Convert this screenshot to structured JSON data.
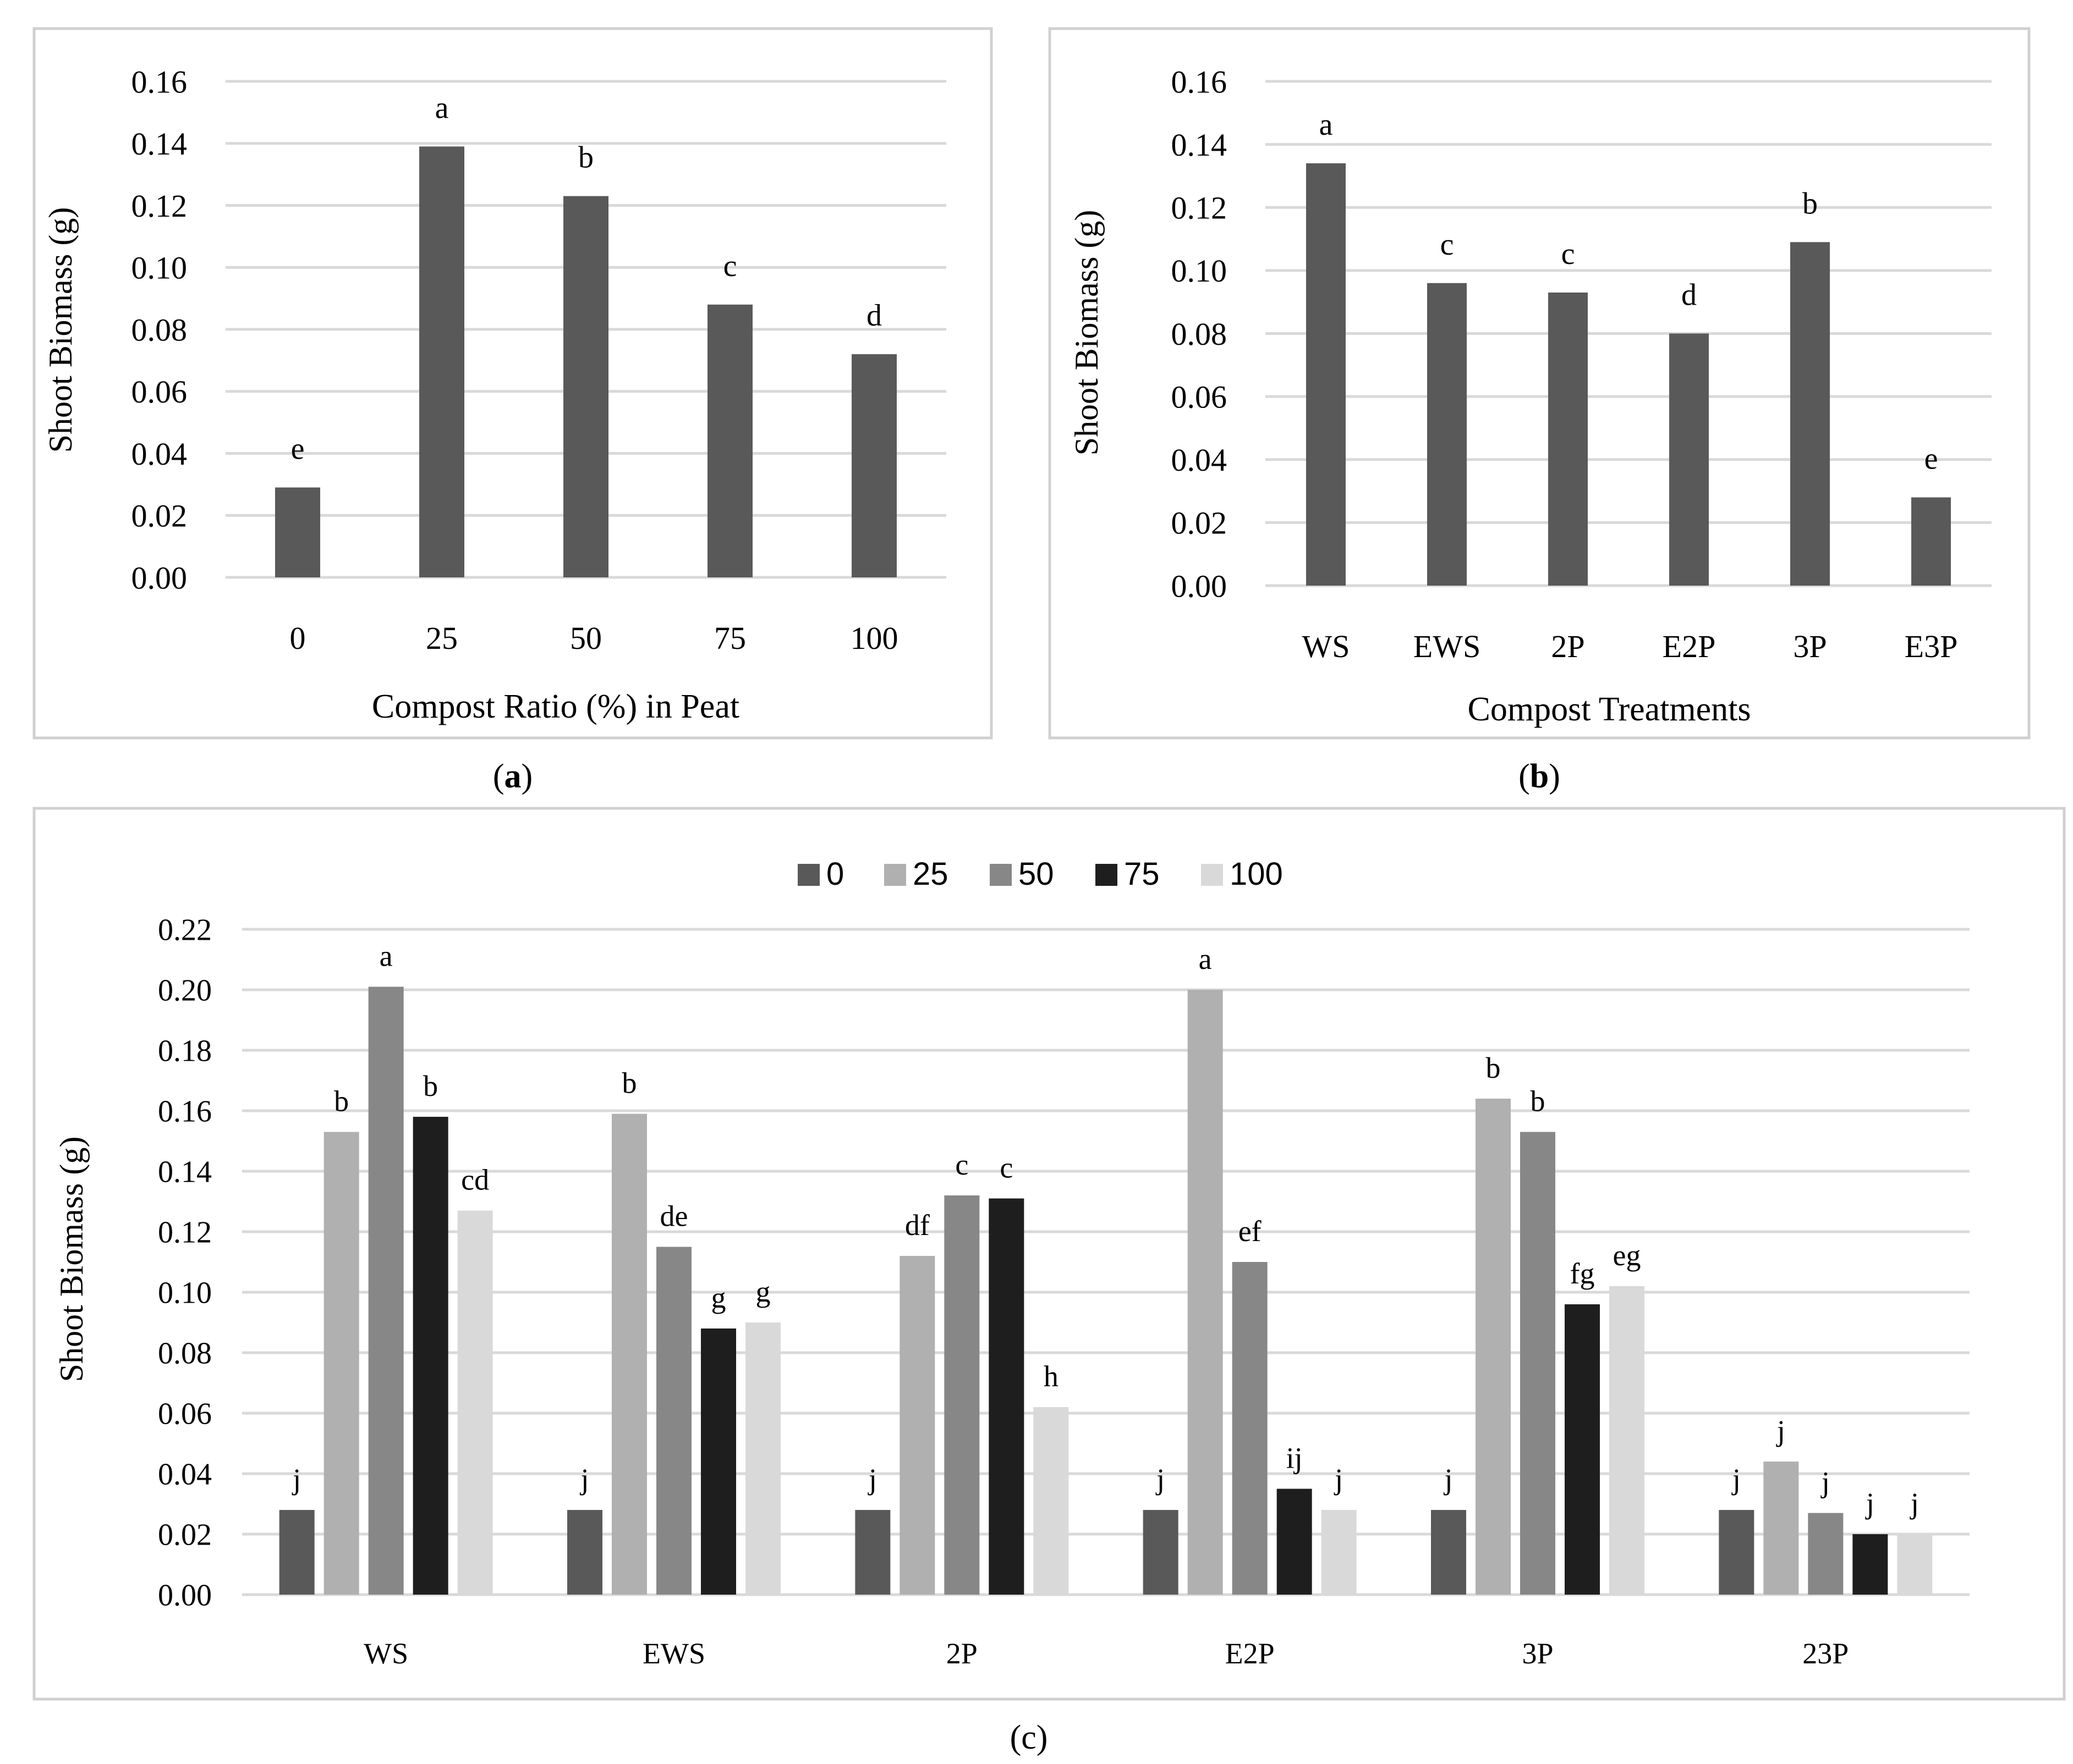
{
  "chart_data": [
    {
      "panel": "a",
      "type": "bar",
      "title": "",
      "xlabel": "Compost Ratio (%) in Peat",
      "ylabel": "Shoot Biomass (g)",
      "ylim": [
        0,
        0.16
      ],
      "yticks": [
        "0.00",
        "0.02",
        "0.04",
        "0.06",
        "0.08",
        "0.10",
        "0.12",
        "0.14",
        "0.16"
      ],
      "categories": [
        "0",
        "25",
        "50",
        "75",
        "100"
      ],
      "values": [
        0.029,
        0.139,
        0.123,
        0.088,
        0.072
      ],
      "labels": [
        "e",
        "a",
        "b",
        "c",
        "d"
      ],
      "color": "#595959",
      "grid": true
    },
    {
      "panel": "b",
      "type": "bar",
      "title": "",
      "xlabel": "Compost Treatments",
      "ylabel": "Shoot Biomass (g)",
      "ylim": [
        0,
        0.16
      ],
      "yticks": [
        "0.00",
        "0.02",
        "0.04",
        "0.06",
        "0.08",
        "0.10",
        "0.12",
        "0.14",
        "0.16"
      ],
      "categories": [
        "WS",
        "EWS",
        "2P",
        "E2P",
        "3P",
        "E3P"
      ],
      "values": [
        0.134,
        0.096,
        0.093,
        0.08,
        0.109,
        0.028
      ],
      "labels": [
        "a",
        "c",
        "c",
        "d",
        "b",
        "e"
      ],
      "color": "#595959",
      "grid": true
    },
    {
      "panel": "c",
      "type": "bar",
      "title": "",
      "xlabel": "",
      "ylabel": "Shoot Biomass (g)",
      "ylim": [
        0,
        0.22
      ],
      "yticks": [
        "0.00",
        "0.02",
        "0.04",
        "0.06",
        "0.08",
        "0.10",
        "0.12",
        "0.14",
        "0.16",
        "0.18",
        "0.20",
        "0.22"
      ],
      "categories": [
        "WS",
        "EWS",
        "2P",
        "E2P",
        "3P",
        "23P"
      ],
      "legend_position": "top-center",
      "grid": true,
      "series": [
        {
          "name": "0",
          "color": "#595959",
          "values": [
            0.028,
            0.028,
            0.028,
            0.028,
            0.028,
            0.028
          ],
          "labels": [
            "j",
            "j",
            "j",
            "j",
            "j",
            "j"
          ]
        },
        {
          "name": "25",
          "color": "#b0b0b0",
          "values": [
            0.153,
            0.159,
            0.112,
            0.2,
            0.164,
            0.044
          ],
          "labels": [
            "b",
            "b",
            "df",
            "a",
            "b",
            "j"
          ]
        },
        {
          "name": "50",
          "color": "#878787",
          "values": [
            0.201,
            0.115,
            0.132,
            0.11,
            0.153,
            0.027
          ],
          "labels": [
            "a",
            "de",
            "c",
            "ef",
            "b",
            "j"
          ]
        },
        {
          "name": "75",
          "color": "#1e1e1e",
          "values": [
            0.158,
            0.088,
            0.131,
            0.035,
            0.096,
            0.02
          ],
          "labels": [
            "b",
            "g",
            "c",
            "ij",
            "fg",
            "j"
          ]
        },
        {
          "name": "100",
          "color": "#d9d9d9",
          "values": [
            0.127,
            0.09,
            0.062,
            0.028,
            0.102,
            0.02
          ],
          "labels": [
            "cd",
            "g",
            "h",
            "j",
            "eg",
            "j"
          ]
        }
      ]
    }
  ],
  "captions": {
    "a_open": "(",
    "a_letter": "a",
    "a_close": ")",
    "b_open": "(",
    "b_letter": "b",
    "b_close": ")",
    "c": "(c)"
  }
}
